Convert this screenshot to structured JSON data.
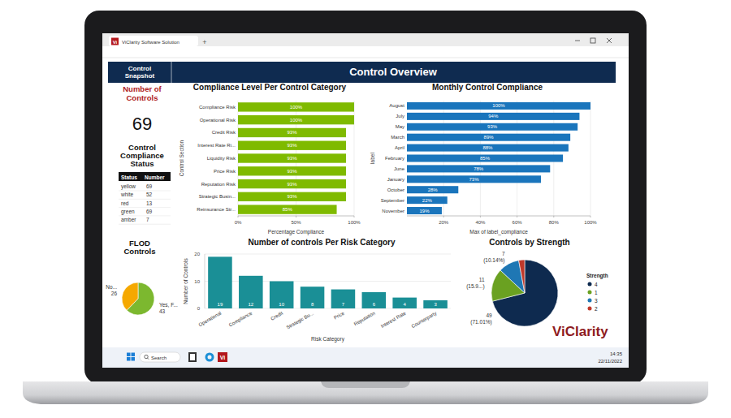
{
  "window": {
    "tab_icon": "Vi",
    "tab_title": "ViClarity Software Solution",
    "new_tab": "+"
  },
  "header": {
    "section": "Control Snapshot",
    "title": "Control Overview"
  },
  "snapshot": {
    "count_title": "Number of Controls",
    "count": 69,
    "status_title": "Control Compliance Status",
    "status_table": {
      "columns": [
        "Status",
        "Number"
      ],
      "rows": [
        [
          "yellow",
          69
        ],
        [
          "white",
          52
        ],
        [
          "red",
          13
        ],
        [
          "green",
          69
        ],
        [
          "amber",
          7
        ]
      ]
    }
  },
  "chart_data": [
    {
      "type": "bar",
      "orientation": "horizontal",
      "title": "Compliance Level Per Control Category",
      "x_label": "Percentage Compliance",
      "y_label": "Control Section",
      "categories": [
        "Compliance Risk",
        "Operational Risk",
        "Credit Risk",
        "Interest Rate Ri...",
        "Liquidity Risk",
        "Price Risk",
        "Reputation Risk",
        "Strategic Busin...",
        "Reinsurance Str..."
      ],
      "values": [
        100,
        100,
        93,
        93,
        93,
        93,
        93,
        93,
        85
      ],
      "value_labels": [
        "100%",
        "100%",
        "93%",
        "93%",
        "93%",
        "93%",
        "93%",
        "93%",
        "85%"
      ],
      "data_labels": true,
      "color": "#7fba00",
      "xlim": [
        0,
        100
      ],
      "xticks": [
        {
          "value": 0,
          "label": "0%"
        },
        {
          "value": 50,
          "label": "50%"
        },
        {
          "value": 100,
          "label": "100%"
        }
      ],
      "grid": true
    },
    {
      "type": "bar",
      "orientation": "horizontal",
      "title": "Monthly Control Compliance",
      "x_label": "Max of label_compliance",
      "y_label": "label",
      "categories": [
        "August",
        "July",
        "May",
        "March",
        "April",
        "February",
        "June",
        "January",
        "October",
        "September",
        "November"
      ],
      "values": [
        100,
        94,
        93,
        89,
        88,
        85,
        78,
        73,
        28,
        22,
        19
      ],
      "value_labels": [
        "100%",
        "94%",
        "93%",
        "89%",
        "88%",
        "85%",
        "78%",
        "73%",
        "28%",
        "22%",
        "19%"
      ],
      "data_labels": true,
      "color": "#1a75bc",
      "xlim": [
        0,
        100
      ],
      "xticks": [
        {
          "value": 20,
          "label": "20%"
        },
        {
          "value": 40,
          "label": "40%"
        },
        {
          "value": 60,
          "label": "60%"
        },
        {
          "value": 80,
          "label": "80%"
        },
        {
          "value": 100,
          "label": "100%"
        }
      ],
      "grid": true
    },
    {
      "type": "bar",
      "title": "Number of controls Per Risk Category",
      "x_label": "Risk Category",
      "y_label": "Number of Controls",
      "categories": [
        "Operational",
        "Compliance",
        "Credit",
        "Strategic Bu...",
        "Price",
        "Reputation",
        "Interest Rate",
        "Counterparty"
      ],
      "values": [
        19,
        12,
        10,
        8,
        7,
        6,
        4,
        3
      ],
      "data_labels": true,
      "color": "#1a8f96",
      "ylim": [
        0,
        20
      ],
      "yticks": [
        0,
        10,
        20
      ],
      "grid": true
    },
    {
      "type": "pie",
      "title": "Controls by Strength",
      "legend_title": "Strength",
      "categories": [
        "4",
        "1",
        "3",
        "2"
      ],
      "values": [
        49,
        11,
        7,
        2
      ],
      "value_labels": [
        "49 (71.01%)",
        "11 (15.9...)",
        "7 (10.14%)",
        null
      ],
      "data_labels": true,
      "colors": [
        "#0e2a4f",
        "#6aa121",
        "#1f77b4",
        "#c0392b"
      ],
      "legend": "right"
    },
    {
      "type": "pie",
      "title": "FLOD Controls",
      "categories": [
        "Yes, F...",
        "No..."
      ],
      "values": [
        43,
        26
      ],
      "data_labels": true,
      "colors": [
        "#7cb82f",
        "#f5a800"
      ]
    }
  ],
  "logo": "ViClarity",
  "taskbar": {
    "search": "Search",
    "app": "Vi",
    "time": "14:35",
    "date": "22/11/2022"
  }
}
